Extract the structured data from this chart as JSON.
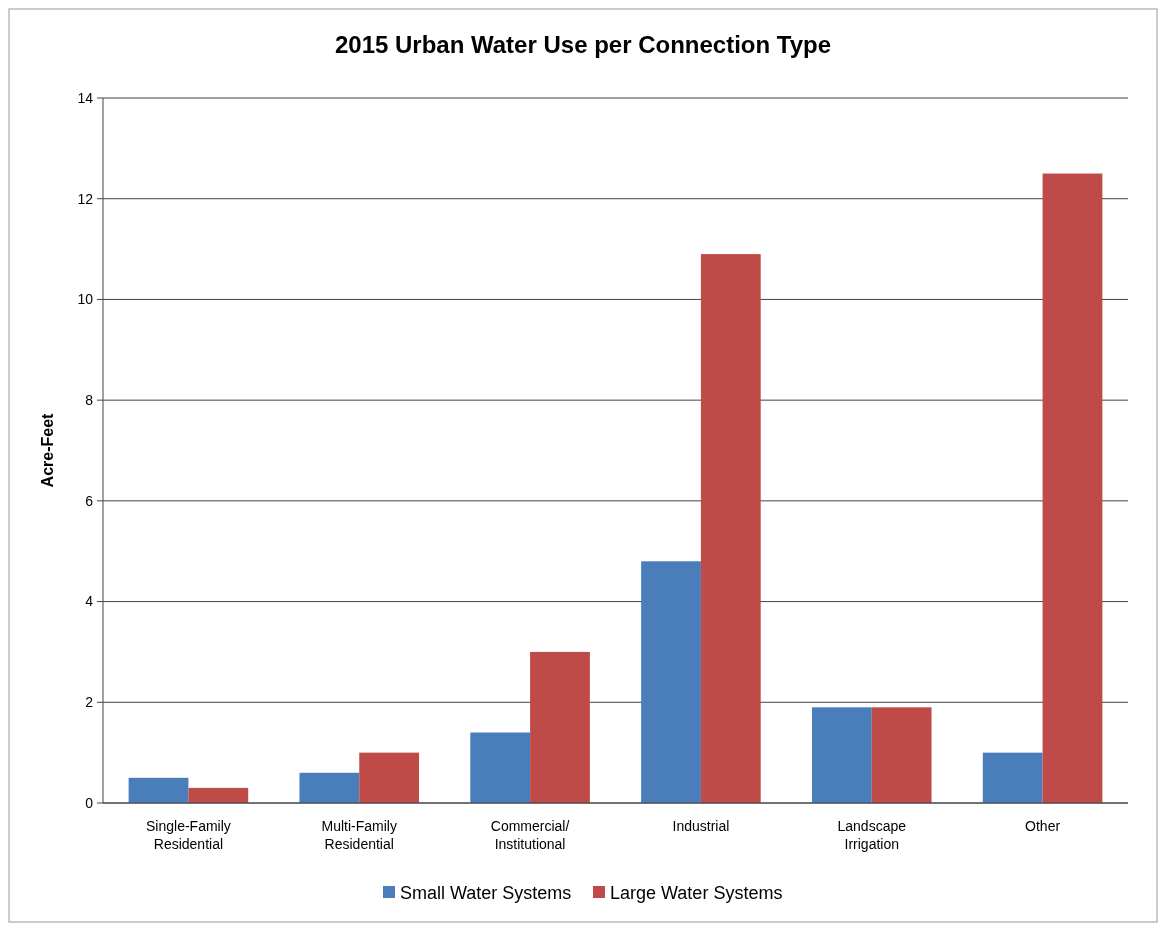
{
  "chart_data": {
    "type": "bar",
    "title": "2015 Urban Water Use per Connection Type",
    "ylabel": "Acre-Feet",
    "categories": [
      "Single-Family Residential",
      "Multi-Family Residential",
      "Commercial/ Institutional",
      "Industrial",
      "Landscape Irrigation",
      "Other"
    ],
    "series": [
      {
        "name": "Small Water Systems",
        "color": "#4a7ebb",
        "values": [
          0.5,
          0.6,
          1.4,
          4.8,
          1.9,
          1.0
        ]
      },
      {
        "name": "Large Water Systems",
        "color": "#be4b48",
        "values": [
          0.3,
          1.0,
          3.0,
          10.9,
          1.9,
          12.5
        ]
      }
    ],
    "ylim": [
      0,
      14
    ],
    "yticks": [
      0,
      2,
      4,
      6,
      8,
      10,
      12,
      14
    ],
    "grid": "y",
    "legend": "bottom"
  }
}
